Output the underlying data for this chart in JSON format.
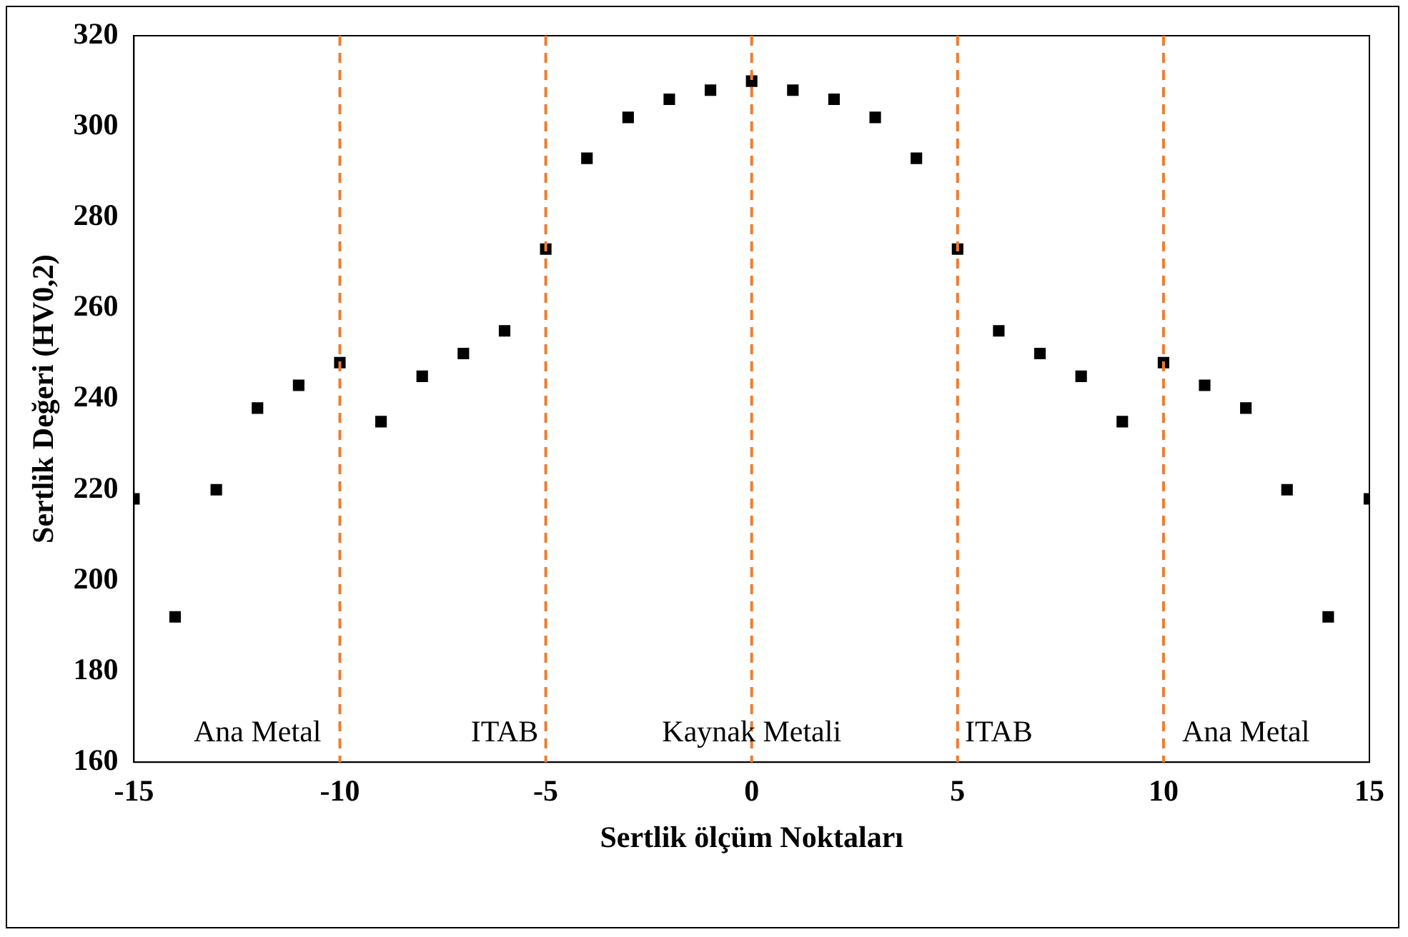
{
  "chart_data": {
    "type": "scatter",
    "xlabel": "Sertlik ölçüm Noktaları",
    "ylabel": "Sertlik Değeri (HV0,2)",
    "x": [
      -15,
      -14,
      -13,
      -12,
      -11,
      -10,
      -9,
      -8,
      -7,
      -6,
      -5,
      -4,
      -3,
      -2,
      -1,
      0,
      1,
      2,
      3,
      4,
      5,
      6,
      7,
      8,
      9,
      10,
      11,
      12,
      13,
      14,
      15
    ],
    "series": [
      {
        "color": "#000000",
        "values": [
          218,
          192,
          220,
          238,
          243,
          248,
          235,
          245,
          250,
          255,
          273,
          293,
          302,
          306,
          308,
          310,
          308,
          306,
          302,
          293,
          273,
          255,
          250,
          245,
          235,
          248,
          243,
          238,
          220,
          192,
          218
        ]
      }
    ],
    "xlim": [
      -15,
      15
    ],
    "xticks": [
      -15,
      -10,
      -5,
      0,
      5,
      10,
      15
    ],
    "ylim": [
      160,
      320
    ],
    "yticks": [
      160,
      180,
      200,
      220,
      240,
      260,
      280,
      300,
      320
    ],
    "grid": false,
    "legend": false,
    "marker": "square",
    "ref_lines": [
      {
        "axis": "x",
        "value": -10,
        "color": "#ed7d31",
        "line_style": "dashed"
      },
      {
        "axis": "x",
        "value": -5,
        "color": "#ed7d31",
        "line_style": "dashed"
      },
      {
        "axis": "x",
        "value": 0,
        "color": "#ed7d31",
        "line_style": "dashed"
      },
      {
        "axis": "x",
        "value": 5,
        "color": "#ed7d31",
        "line_style": "dashed"
      },
      {
        "axis": "x",
        "value": 10,
        "color": "#ed7d31",
        "line_style": "dashed"
      }
    ],
    "annotations": [
      "Ana Metal",
      "ITAB",
      "Kaynak Metali",
      "ITAB",
      "Ana Metal"
    ]
  }
}
